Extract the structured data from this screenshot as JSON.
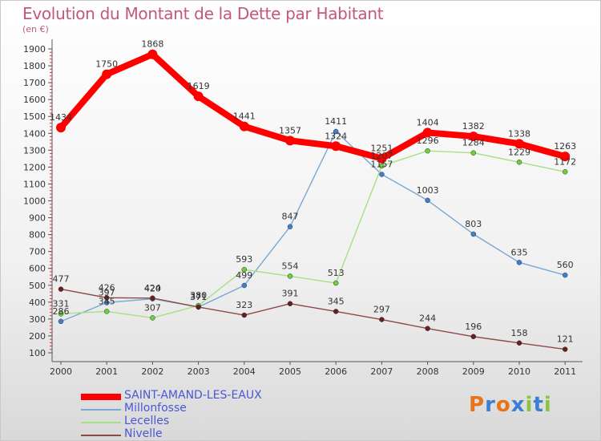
{
  "title": "Evolution du Montant de la Dette par Habitant",
  "subtitle": "(en €)",
  "logo": {
    "text": "Proxiti",
    "colors": [
      "#e8731a",
      "#3a7fd5",
      "#e8731a",
      "#3a7fd5",
      "#8bc53f",
      "#3a7fd5",
      "#8bc53f"
    ]
  },
  "chart_data": {
    "type": "line",
    "x": [
      "2000",
      "2001",
      "2002",
      "2003",
      "2004",
      "2005",
      "2006",
      "2007",
      "2008",
      "2009",
      "2010",
      "2011"
    ],
    "ylim": [
      100,
      1900
    ],
    "yticks": [
      100,
      200,
      300,
      400,
      500,
      600,
      700,
      800,
      900,
      1000,
      1100,
      1200,
      1300,
      1400,
      1500,
      1600,
      1700,
      1800,
      1900
    ],
    "grid": false,
    "legend_position": "bottom-left",
    "series": [
      {
        "name": "SAINT-AMAND-LES-EAUX",
        "color": "#ff0000",
        "point_color": "#ff0000",
        "highlight": true,
        "values": [
          1434,
          1750,
          1868,
          1619,
          1441,
          1357,
          1324,
          1251,
          1404,
          1382,
          1338,
          1263
        ],
        "labels": [
          "1434",
          "1750",
          "1868",
          "1619",
          "1441",
          "1357",
          "1324",
          "1251",
          "1404",
          "1382",
          "1338",
          "1263"
        ]
      },
      {
        "name": "Millonfosse",
        "color": "#79a8d4",
        "point_color": "#3f7fcf",
        "highlight": false,
        "values": [
          286,
          397,
          420,
          371,
          499,
          847,
          1411,
          1157,
          1003,
          803,
          635,
          560
        ],
        "labels": [
          "286",
          "397",
          "420",
          "371",
          "499",
          "847",
          "1411",
          "1157",
          "1003",
          "803",
          "635",
          "560"
        ]
      },
      {
        "name": "Lecelles",
        "color": "#a6e084",
        "point_color": "#6ccf3b",
        "highlight": false,
        "values": [
          331,
          345,
          307,
          380,
          593,
          554,
          513,
          1207,
          1296,
          1284,
          1229,
          1172
        ],
        "labels": [
          "331",
          "345",
          "307",
          "380",
          "593",
          "554",
          "513",
          "1207",
          "1296",
          "1284",
          "1229",
          "1172"
        ]
      },
      {
        "name": "Nivelle",
        "color": "#8b4a4a",
        "point_color": "#6b1e1e",
        "highlight": false,
        "values": [
          477,
          426,
          424,
          371,
          323,
          391,
          345,
          297,
          244,
          196,
          158,
          121
        ],
        "labels": [
          "477",
          "426",
          "424",
          "371",
          "323",
          "391",
          "345",
          "297",
          "244",
          "196",
          "158",
          "121"
        ]
      }
    ]
  }
}
